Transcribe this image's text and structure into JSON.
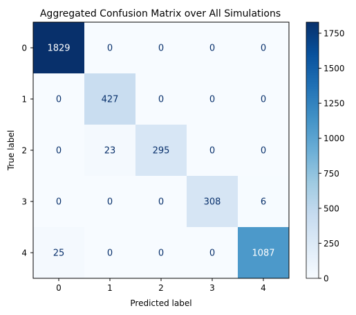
{
  "chart_data": {
    "type": "heatmap",
    "title": "Aggregated Confusion Matrix over All Simulations",
    "xlabel": "Predicted label",
    "ylabel": "True label",
    "x_categories": [
      "0",
      "1",
      "2",
      "3",
      "4"
    ],
    "y_categories": [
      "0",
      "1",
      "2",
      "3",
      "4"
    ],
    "values": [
      [
        1829,
        0,
        0,
        0,
        0
      ],
      [
        0,
        427,
        0,
        0,
        0
      ],
      [
        0,
        23,
        295,
        0,
        0
      ],
      [
        0,
        0,
        0,
        308,
        6
      ],
      [
        25,
        0,
        0,
        0,
        1087
      ]
    ],
    "colormap": "Blues",
    "colorbar": {
      "range": [
        0,
        1829
      ],
      "ticks": [
        0,
        250,
        500,
        750,
        1000,
        1250,
        1500,
        1750
      ]
    },
    "grid": false
  }
}
